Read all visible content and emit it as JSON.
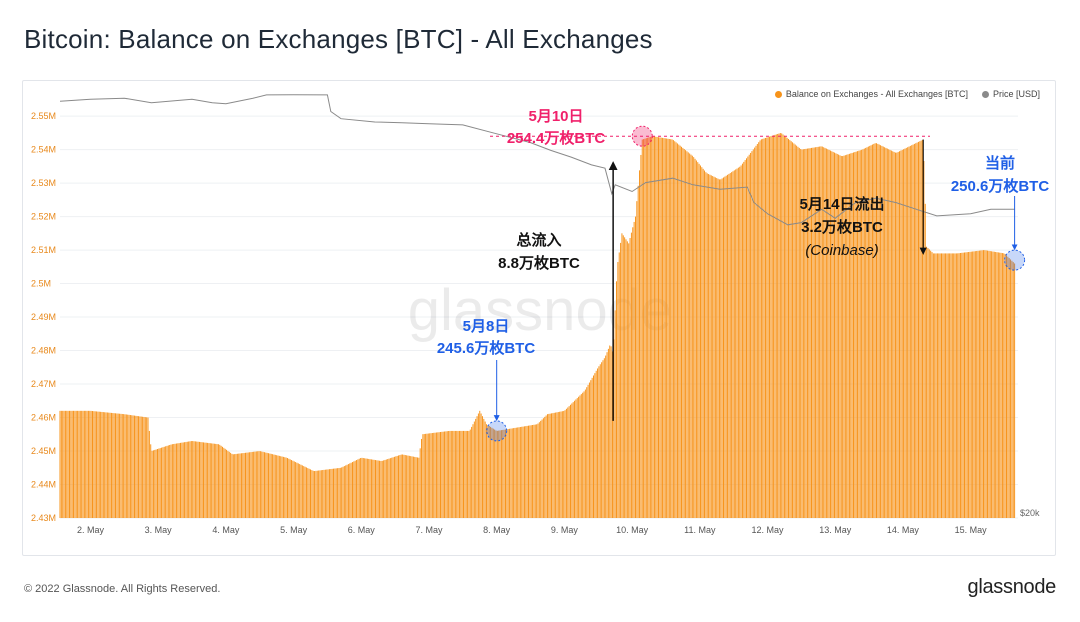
{
  "page": {
    "title": "Bitcoin: Balance on Exchanges [BTC] - All Exchanges",
    "copyright": "© 2022 Glassnode. All Rights Reserved.",
    "logo": "glassnode",
    "watermark": "glassnode"
  },
  "colors": {
    "balance": "#f7931a",
    "price": "#8a8a8a",
    "pink": "#f0206a",
    "blue": "#1f5fe6",
    "dark": "#111111"
  },
  "chart_data": {
    "type": "bar",
    "title": "Bitcoin: Balance on Exchanges [BTC] - All Exchanges",
    "xlabel": "",
    "ylabel": "",
    "ylim": [
      2430000,
      2556000
    ],
    "y_ticks": [
      2430000,
      2440000,
      2450000,
      2460000,
      2470000,
      2480000,
      2490000,
      2500000,
      2510000,
      2520000,
      2530000,
      2540000,
      2550000
    ],
    "y_tick_labels": [
      "2.43M",
      "2.44M",
      "2.45M",
      "2.46M",
      "2.47M",
      "2.48M",
      "2.49M",
      "2.5M",
      "2.51M",
      "2.52M",
      "2.53M",
      "2.54M",
      "2.55M"
    ],
    "x_range": [
      1.55,
      15.7
    ],
    "x_ticks": [
      2,
      3,
      4,
      5,
      6,
      7,
      8,
      9,
      10,
      11,
      12,
      13,
      14,
      15
    ],
    "x_tick_labels": [
      "2. May",
      "3. May",
      "4. May",
      "5. May",
      "6. May",
      "7. May",
      "8. May",
      "9. May",
      "10. May",
      "11. May",
      "12. May",
      "13. May",
      "14. May",
      "15. May"
    ],
    "right_axis_label": "$20k",
    "legend_position": "top-right",
    "series": [
      {
        "name": "Balance on Exchanges - All Exchanges [BTC]",
        "kind": "bar",
        "points": [
          [
            1.55,
            2462000
          ],
          [
            2.0,
            2462000
          ],
          [
            2.5,
            2461000
          ],
          [
            2.85,
            2460000
          ],
          [
            2.9,
            2450000
          ],
          [
            3.2,
            2452000
          ],
          [
            3.5,
            2453000
          ],
          [
            3.9,
            2452000
          ],
          [
            4.1,
            2449000
          ],
          [
            4.5,
            2450000
          ],
          [
            4.9,
            2448000
          ],
          [
            5.1,
            2446000
          ],
          [
            5.3,
            2444000
          ],
          [
            5.7,
            2445000
          ],
          [
            6.0,
            2448000
          ],
          [
            6.3,
            2447000
          ],
          [
            6.6,
            2449000
          ],
          [
            6.85,
            2448000
          ],
          [
            6.9,
            2455000
          ],
          [
            7.3,
            2456000
          ],
          [
            7.6,
            2456000
          ],
          [
            7.75,
            2462000
          ],
          [
            7.85,
            2458000
          ],
          [
            8.0,
            2456000
          ],
          [
            8.3,
            2457000
          ],
          [
            8.6,
            2458000
          ],
          [
            8.75,
            2461000
          ],
          [
            9.0,
            2462000
          ],
          [
            9.3,
            2468000
          ],
          [
            9.5,
            2475000
          ],
          [
            9.6,
            2478000
          ],
          [
            9.68,
            2482000
          ],
          [
            9.72,
            2479000
          ],
          [
            9.78,
            2505000
          ],
          [
            9.85,
            2515000
          ],
          [
            9.95,
            2512000
          ],
          [
            10.05,
            2520000
          ],
          [
            10.15,
            2543000
          ],
          [
            10.3,
            2544000
          ],
          [
            10.6,
            2543000
          ],
          [
            10.9,
            2538000
          ],
          [
            11.1,
            2533000
          ],
          [
            11.3,
            2531000
          ],
          [
            11.6,
            2535000
          ],
          [
            11.9,
            2543000
          ],
          [
            12.2,
            2545000
          ],
          [
            12.5,
            2540000
          ],
          [
            12.8,
            2541000
          ],
          [
            13.1,
            2538000
          ],
          [
            13.4,
            2540000
          ],
          [
            13.6,
            2542000
          ],
          [
            13.9,
            2539000
          ],
          [
            14.1,
            2541000
          ],
          [
            14.3,
            2543000
          ],
          [
            14.35,
            2511000
          ],
          [
            14.45,
            2509000
          ],
          [
            14.8,
            2509000
          ],
          [
            15.2,
            2510000
          ],
          [
            15.5,
            2509000
          ],
          [
            15.65,
            2506000
          ]
        ]
      },
      {
        "name": "Price [USD]",
        "kind": "line",
        "right_axis_range": [
          20000,
          39000
        ],
        "points": [
          [
            1.55,
            38760
          ],
          [
            2.0,
            38850
          ],
          [
            2.5,
            38900
          ],
          [
            2.9,
            38700
          ],
          [
            3.5,
            38850
          ],
          [
            3.8,
            38700
          ],
          [
            4.0,
            38650
          ],
          [
            4.4,
            38900
          ],
          [
            4.6,
            39050
          ],
          [
            5.0,
            39060
          ],
          [
            5.5,
            39050
          ],
          [
            5.55,
            38300
          ],
          [
            5.7,
            37980
          ],
          [
            6.2,
            37830
          ],
          [
            6.6,
            37800
          ],
          [
            7.0,
            37750
          ],
          [
            7.5,
            37700
          ],
          [
            8.0,
            37300
          ],
          [
            8.5,
            36900
          ],
          [
            8.8,
            36550
          ],
          [
            9.1,
            36250
          ],
          [
            9.4,
            35900
          ],
          [
            9.6,
            35750
          ],
          [
            9.7,
            34600
          ],
          [
            9.75,
            35000
          ],
          [
            10.0,
            34700
          ],
          [
            10.2,
            35100
          ],
          [
            10.6,
            35300
          ],
          [
            10.9,
            35000
          ],
          [
            11.3,
            34800
          ],
          [
            11.7,
            34900
          ],
          [
            11.8,
            34200
          ],
          [
            12.0,
            33700
          ],
          [
            12.3,
            33200
          ],
          [
            12.5,
            33300
          ],
          [
            12.8,
            33900
          ],
          [
            13.0,
            33500
          ],
          [
            13.3,
            34200
          ],
          [
            13.6,
            34400
          ],
          [
            13.9,
            34200
          ],
          [
            14.2,
            33900
          ],
          [
            14.5,
            33600
          ],
          [
            15.0,
            33700
          ],
          [
            15.3,
            33900
          ],
          [
            15.65,
            33900
          ]
        ]
      }
    ],
    "annotations": [
      {
        "id": "may10",
        "line1": "5月10日",
        "line2": "254.4万枚BTC",
        "color": "pink"
      },
      {
        "id": "may8",
        "line1": "5月8日",
        "line2": "245.6万枚BTC",
        "color": "blue"
      },
      {
        "id": "inflow",
        "line1": "总流入",
        "line2": "8.8万枚BTC",
        "color": "dark"
      },
      {
        "id": "may14",
        "line1": "5月14日流出",
        "line2": "3.2万枚BTC",
        "line3": "(Coinbase)",
        "color": "dark"
      },
      {
        "id": "current",
        "line1": "当前",
        "line2": "250.6万枚BTC",
        "color": "blue"
      }
    ],
    "annotation_points": {
      "may10": [
        10.15,
        2544000
      ],
      "may8": [
        8.0,
        2456000
      ],
      "current": [
        15.65,
        2507000
      ],
      "inflow_arrow": [
        9.72,
        2459000,
        2536000
      ],
      "may14_arrow": [
        14.3,
        2543000,
        2509000
      ]
    }
  }
}
